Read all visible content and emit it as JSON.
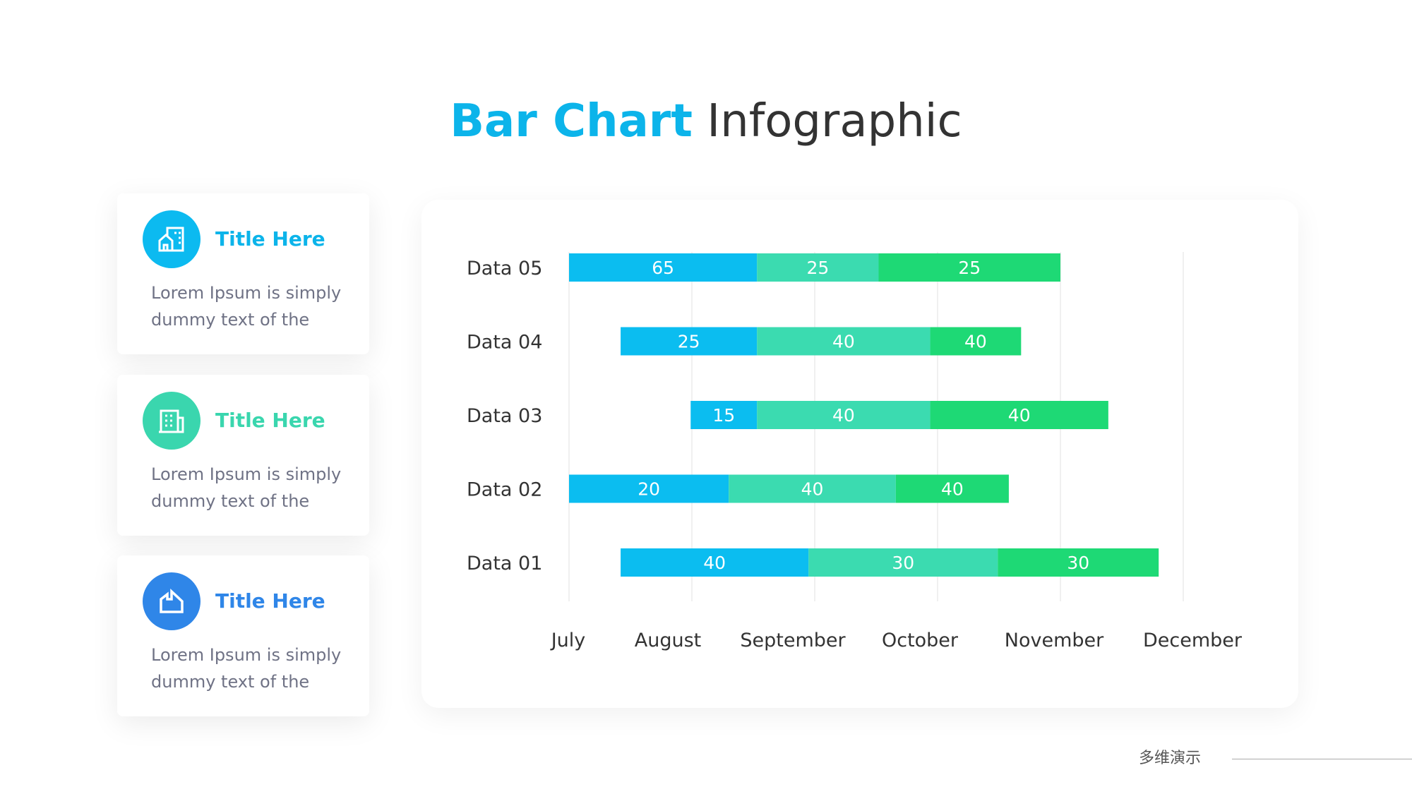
{
  "header": {
    "title_accent": "Bar Chart",
    "title_rest": "Infographic"
  },
  "cards": [
    {
      "title": "Title Here",
      "text": "Lorem Ipsum is simply dummy text of the",
      "color": "#0cbaf0",
      "icon": "building-house-icon"
    },
    {
      "title": "Title Here",
      "text": "Lorem Ipsum is simply dummy text of the",
      "color": "#3ad6ae",
      "icon": "office-building-icon"
    },
    {
      "title": "Title Here",
      "text": "Lorem Ipsum is simply dummy text of the",
      "color": "#2f86e8",
      "icon": "factory-icon"
    }
  ],
  "chart_data": {
    "type": "bar",
    "orientation": "horizontal-stacked-gantt",
    "title": "",
    "categories": [
      "Data 05",
      "Data 04",
      "Data 03",
      "Data 02",
      "Data 01"
    ],
    "x_ticks": [
      "July",
      "August",
      "September",
      "October",
      "November",
      "December"
    ],
    "x_unit": "months after start of July",
    "xlim": [
      0,
      5
    ],
    "grid": true,
    "series_colors": [
      "#0bbdf0",
      "#3bdbb0",
      "#1ed975"
    ],
    "rows": [
      {
        "label": "Data 05",
        "bounds": [
          0,
          1.53,
          2.52,
          4.0
        ],
        "values": [
          65,
          25,
          25
        ]
      },
      {
        "label": "Data 04",
        "bounds": [
          0.42,
          1.53,
          2.94,
          3.68
        ],
        "values": [
          25,
          40,
          40
        ]
      },
      {
        "label": "Data 03",
        "bounds": [
          0.99,
          1.53,
          2.94,
          4.39
        ],
        "values": [
          15,
          40,
          40
        ]
      },
      {
        "label": "Data 02",
        "bounds": [
          0,
          1.3,
          2.66,
          3.58
        ],
        "values": [
          20,
          40,
          40
        ]
      },
      {
        "label": "Data 01",
        "bounds": [
          0.42,
          1.95,
          3.49,
          4.8
        ],
        "values": [
          40,
          30,
          30
        ]
      }
    ]
  },
  "footer": {
    "brand": "多维演示"
  }
}
